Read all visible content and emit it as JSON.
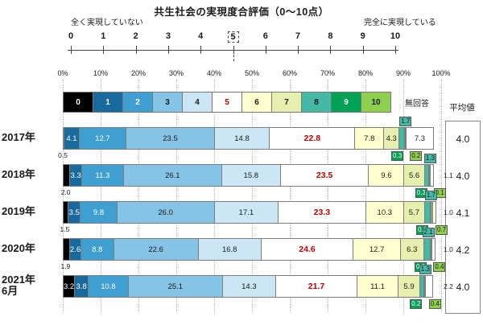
{
  "title": "共生社会の実現度合評価（0～10点）",
  "scale": {
    "left_label": "全く実現していない",
    "right_label": "完全に実現している",
    "ticks": [
      "0",
      "1",
      "2",
      "3",
      "4",
      "5",
      "6",
      "7",
      "8",
      "9",
      "10"
    ],
    "highlighted_tick_index": 5
  },
  "percent_axis_labels": [
    "0%",
    "10%",
    "20%",
    "30%",
    "40%",
    "50%",
    "60%",
    "70%",
    "80%",
    "90%",
    "100%"
  ],
  "legend": {
    "no_answer_label": "無回答",
    "items": [
      {
        "label": "0",
        "color": "#000000",
        "text": "#ffffff"
      },
      {
        "label": "1",
        "color": "#17699e",
        "text": "#ffffff"
      },
      {
        "label": "2",
        "color": "#3f9fd1",
        "text": "#ffffff"
      },
      {
        "label": "3",
        "color": "#85c4e6",
        "text": "#1a1a1a"
      },
      {
        "label": "4",
        "color": "#cbe7f5",
        "text": "#1a1a1a"
      },
      {
        "label": "5",
        "color": "#ffffff",
        "text": "#c00000"
      },
      {
        "label": "6",
        "color": "#ffffcf",
        "text": "#1a1a1a"
      },
      {
        "label": "7",
        "color": "#e6efad",
        "text": "#1a1a1a"
      },
      {
        "label": "8",
        "color": "#45b8a6",
        "text": "#1a1a1a"
      },
      {
        "label": "9",
        "color": "#00a254",
        "text": "#ffffff"
      },
      {
        "label": "10",
        "color": "#8ed04d",
        "text": "#1a1a1a"
      }
    ],
    "no_answer_color": "#ffffff"
  },
  "average_header": "平均値",
  "chart_data": {
    "type": "bar",
    "variant": "horizontal-stacked-100percent",
    "title": "共生社会の実現度合評価（0～10点）",
    "categories": [
      "0",
      "1",
      "2",
      "3",
      "4",
      "5",
      "6",
      "7",
      "8",
      "9",
      "10",
      "無回答"
    ],
    "unit": "%",
    "xlim": [
      0,
      100
    ],
    "grid": "dotted-vertical-10pct",
    "legend_position": "top",
    "series": [
      {
        "name": "2017年",
        "values": [
          0.5,
          4.1,
          12.7,
          23.5,
          14.8,
          22.8,
          7.8,
          4.3,
          1.7,
          0.3,
          0.2,
          7.3
        ],
        "average": "4.0"
      },
      {
        "name": "2018年",
        "values": [
          2.0,
          3.3,
          11.3,
          26.1,
          15.8,
          23.5,
          9.6,
          5.6,
          1.3,
          0.3,
          0.1,
          1.1
        ],
        "average": "4.0"
      },
      {
        "name": "2019年",
        "values": [
          1.5,
          3.5,
          9.8,
          26.0,
          17.1,
          23.3,
          10.3,
          5.7,
          1.7,
          0.1,
          0.7,
          1.0
        ],
        "average": "4.1"
      },
      {
        "name": "2020年",
        "values": [
          1.9,
          2.6,
          8.8,
          22.6,
          16.8,
          24.6,
          12.7,
          6.3,
          2.1,
          0.2,
          0.4,
          1.0
        ],
        "average": "4.2"
      },
      {
        "name": "2021年\n6月",
        "values": [
          3.2,
          3.8,
          10.8,
          25.1,
          14.3,
          21.7,
          11.1,
          5.9,
          1.3,
          0.2,
          0.4,
          2.2
        ],
        "average": "4.0"
      }
    ]
  }
}
